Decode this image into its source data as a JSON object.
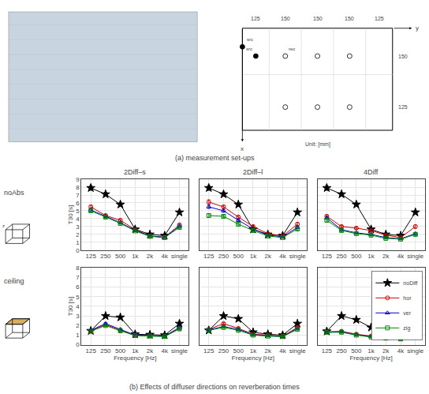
{
  "chart_data": [
    {
      "type": "line",
      "title": "2Diff–s",
      "categories": [
        "125",
        "250",
        "500",
        "1k",
        "2k",
        "4k",
        "single"
      ],
      "series": [
        {
          "name": "noDiff",
          "color": "#000000",
          "marker": "star",
          "values": [
            7.9,
            7.1,
            5.8,
            2.65,
            2.0,
            1.85,
            4.8
          ],
          "errors": [
            0.3,
            0.25,
            0.2,
            0.15,
            0.1,
            0.1,
            0.2
          ]
        },
        {
          "name": "hor",
          "color": "#cc0000",
          "marker": "circle",
          "values": [
            5.5,
            4.4,
            3.8,
            2.6,
            1.8,
            1.65,
            3.2
          ],
          "errors": [
            0.2,
            0.15,
            0.15,
            0.12,
            0.1,
            0.1,
            0.2
          ]
        },
        {
          "name": "ver",
          "color": "#0000cc",
          "marker": "triangle-up",
          "values": [
            5.1,
            4.3,
            3.5,
            2.5,
            1.8,
            1.65,
            3.05
          ],
          "errors": [
            0.2,
            0.15,
            0.12,
            0.12,
            0.1,
            0.1,
            0.15
          ]
        },
        {
          "name": "zig",
          "color": "#008800",
          "marker": "square",
          "values": [
            5.0,
            4.2,
            3.4,
            2.45,
            1.75,
            1.6,
            2.9
          ],
          "errors": [
            0.2,
            0.15,
            0.12,
            0.12,
            0.1,
            0.1,
            0.15
          ]
        }
      ],
      "ylabel": "T30 [s]",
      "ylim": [
        0,
        9
      ],
      "yticks": [
        0,
        1,
        2,
        3,
        4,
        5,
        6,
        7,
        8,
        9
      ],
      "grid": true,
      "annotations": [
        "(a) measurement set-ups",
        "125",
        "150",
        "150",
        "150",
        "125",
        "150",
        "125",
        "src",
        "src",
        "rec",
        "y",
        "x",
        "Unit: [mm]",
        "noAbs",
        "z"
      ]
    },
    {
      "type": "line",
      "title": "2Diff–l",
      "categories": [
        "125",
        "250",
        "500",
        "1k",
        "2k",
        "4k",
        "single"
      ],
      "series": [
        {
          "name": "noDiff",
          "color": "#000000",
          "marker": "star",
          "values": [
            7.9,
            7.1,
            5.8,
            2.65,
            2.0,
            1.85,
            4.8
          ],
          "errors": [
            0.3,
            0.25,
            0.2,
            0.15,
            0.1,
            0.1,
            0.2
          ]
        },
        {
          "name": "hor",
          "color": "#cc0000",
          "marker": "circle",
          "values": [
            6.1,
            5.5,
            4.2,
            3.0,
            2.1,
            1.8,
            3.3
          ],
          "errors": [
            0.3,
            0.2,
            0.2,
            0.15,
            0.1,
            0.1,
            0.2
          ]
        },
        {
          "name": "ver",
          "color": "#0000cc",
          "marker": "triangle-up",
          "values": [
            5.5,
            5.0,
            3.8,
            2.7,
            1.9,
            1.7,
            2.9
          ],
          "errors": [
            0.2,
            0.18,
            0.15,
            0.12,
            0.1,
            0.1,
            0.15
          ]
        },
        {
          "name": "zig",
          "color": "#008800",
          "marker": "square",
          "values": [
            4.4,
            4.3,
            3.3,
            2.5,
            1.8,
            1.6,
            2.7
          ],
          "errors": [
            0.2,
            0.15,
            0.12,
            0.12,
            0.1,
            0.1,
            0.15
          ]
        }
      ],
      "ylim": [
        0,
        9
      ],
      "yticks": [
        0,
        1,
        2,
        3,
        4,
        5,
        6,
        7,
        8,
        9
      ],
      "grid": true,
      "tick_labels": "x"
    },
    {
      "type": "line",
      "title": "4Diff",
      "categories": [
        "125",
        "250",
        "500",
        "1k",
        "2k",
        "4k",
        "single"
      ],
      "series": [
        {
          "name": "noDiff",
          "color": "#000000",
          "marker": "star",
          "values": [
            7.9,
            7.1,
            5.8,
            2.65,
            2.0,
            1.85,
            4.8
          ],
          "errors": [
            0.3,
            0.25,
            0.2,
            0.15,
            0.1,
            0.1,
            0.2
          ]
        },
        {
          "name": "hor",
          "color": "#cc0000",
          "marker": "circle",
          "values": [
            4.3,
            3.0,
            2.8,
            2.5,
            1.9,
            1.6,
            3.0
          ],
          "errors": [
            0.2,
            0.15,
            0.15,
            0.12,
            0.1,
            0.1,
            0.2
          ]
        },
        {
          "name": "ver",
          "color": "#0000cc",
          "marker": "triangle-up",
          "values": [
            4.1,
            2.6,
            2.2,
            2.0,
            1.6,
            1.45,
            2.1
          ],
          "errors": [
            0.2,
            0.15,
            0.12,
            0.12,
            0.1,
            0.1,
            0.15
          ]
        },
        {
          "name": "zig",
          "color": "#008800",
          "marker": "square",
          "values": [
            3.8,
            2.5,
            2.1,
            1.9,
            1.5,
            1.4,
            2.0
          ],
          "errors": [
            0.2,
            0.15,
            0.12,
            0.12,
            0.1,
            0.1,
            0.15
          ]
        }
      ],
      "ylim": [
        0,
        9
      ],
      "yticks": [
        0,
        1,
        2,
        3,
        4,
        5,
        6,
        7,
        8,
        9
      ],
      "grid": true,
      "tick_labels": "x"
    },
    {
      "type": "line",
      "categories": [
        "125",
        "250",
        "500",
        "1k",
        "2k",
        "4k",
        "single"
      ],
      "series": [
        {
          "name": "noDiff",
          "color": "#000000",
          "marker": "star",
          "values": [
            1.45,
            3.0,
            2.85,
            1.1,
            1.05,
            1.0,
            2.2
          ],
          "errors": [
            0.1,
            0.15,
            0.12,
            0.08,
            0.07,
            0.07,
            0.12
          ]
        },
        {
          "name": "hor",
          "color": "#cc0000",
          "marker": "circle",
          "values": [
            1.45,
            2.1,
            1.5,
            1.0,
            0.95,
            0.9,
            1.7
          ],
          "errors": [
            0.08,
            0.12,
            0.1,
            0.07,
            0.06,
            0.06,
            0.1
          ]
        },
        {
          "name": "ver",
          "color": "#0000cc",
          "marker": "triangle-up",
          "values": [
            1.5,
            2.2,
            1.6,
            1.0,
            0.95,
            0.9,
            1.8
          ],
          "errors": [
            0.08,
            0.12,
            0.1,
            0.07,
            0.06,
            0.06,
            0.1
          ]
        },
        {
          "name": "zig",
          "color": "#008800",
          "marker": "square",
          "values": [
            1.4,
            2.0,
            1.45,
            0.95,
            0.9,
            0.85,
            1.65
          ],
          "errors": [
            0.08,
            0.1,
            0.09,
            0.06,
            0.06,
            0.06,
            0.09
          ]
        }
      ],
      "xlabel": "Frequency [Hz]",
      "ylabel": "T30 [s]",
      "ylim": [
        0,
        8
      ],
      "yticks": [
        0,
        1,
        2,
        3,
        4,
        5,
        6,
        7,
        8
      ],
      "grid": true,
      "annotations": [
        "ceiling",
        "(b) Effects of diffuser directions on reverberation times"
      ]
    },
    {
      "type": "line",
      "categories": [
        "125",
        "250",
        "500",
        "1k",
        "2k",
        "4k",
        "single"
      ],
      "series": [
        {
          "name": "noDiff",
          "color": "#000000",
          "marker": "star",
          "values": [
            1.5,
            3.0,
            2.7,
            1.3,
            1.1,
            1.0,
            2.2
          ],
          "errors": [
            0.1,
            0.15,
            0.12,
            0.08,
            0.07,
            0.07,
            0.12
          ]
        },
        {
          "name": "hor",
          "color": "#cc0000",
          "marker": "circle",
          "values": [
            1.6,
            2.2,
            1.7,
            1.1,
            1.0,
            0.9,
            1.8
          ],
          "errors": [
            0.08,
            0.12,
            0.1,
            0.07,
            0.06,
            0.06,
            0.1
          ]
        },
        {
          "name": "ver",
          "color": "#0000cc",
          "marker": "triangle-up",
          "values": [
            1.55,
            1.9,
            1.6,
            1.05,
            0.95,
            0.85,
            1.7
          ],
          "errors": [
            0.08,
            0.1,
            0.09,
            0.06,
            0.06,
            0.06,
            0.09
          ]
        },
        {
          "name": "zig",
          "color": "#008800",
          "marker": "square",
          "values": [
            1.5,
            1.8,
            1.5,
            1.0,
            0.9,
            0.85,
            1.6
          ],
          "errors": [
            0.08,
            0.1,
            0.09,
            0.06,
            0.06,
            0.06,
            0.09
          ]
        }
      ],
      "xlabel": "Frequency [Hz]",
      "ylim": [
        0,
        8
      ],
      "yticks": [
        0,
        1,
        2,
        3,
        4,
        5,
        6,
        7,
        8
      ],
      "grid": true,
      "tick_labels": "x"
    },
    {
      "type": "line",
      "categories": [
        "125",
        "250",
        "500",
        "1k",
        "2k",
        "4k",
        "single"
      ],
      "series": [
        {
          "name": "noDiff",
          "color": "#000000",
          "marker": "star",
          "values": [
            1.4,
            3.0,
            2.6,
            1.8,
            1.2,
            1.0,
            2.4
          ],
          "errors": [
            0.1,
            0.15,
            0.12,
            0.08,
            0.07,
            0.07,
            0.12
          ]
        },
        {
          "name": "hor",
          "color": "#cc0000",
          "marker": "circle",
          "values": [
            1.35,
            1.4,
            1.1,
            0.9,
            0.8,
            0.7,
            1.0
          ],
          "errors": [
            0.08,
            0.1,
            0.09,
            0.06,
            0.06,
            0.06,
            0.09
          ]
        },
        {
          "name": "ver",
          "color": "#0000cc",
          "marker": "triangle-up",
          "values": [
            1.3,
            1.35,
            1.05,
            0.85,
            0.75,
            0.65,
            0.95
          ],
          "errors": [
            0.08,
            0.1,
            0.09,
            0.06,
            0.06,
            0.06,
            0.09
          ]
        },
        {
          "name": "zig",
          "color": "#008800",
          "marker": "square",
          "values": [
            1.3,
            1.3,
            1.0,
            0.8,
            0.7,
            0.6,
            0.9
          ],
          "errors": [
            0.08,
            0.1,
            0.09,
            0.06,
            0.06,
            0.06,
            0.09
          ]
        }
      ],
      "xlabel": "Frequency [Hz]",
      "ylim": [
        0,
        8
      ],
      "yticks": [
        0,
        1,
        2,
        3,
        4,
        5,
        6,
        7,
        8
      ],
      "grid": true,
      "tick_labels": "x",
      "legend": "upper right"
    }
  ]
}
